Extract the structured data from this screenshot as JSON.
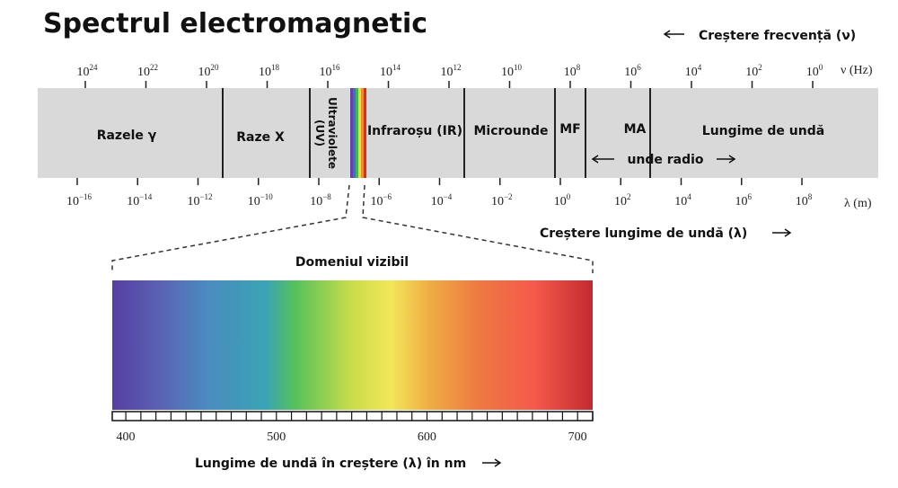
{
  "header": {
    "title": "Spectrul electromagnetic",
    "frequency_note": "Creștere frecvență (ν)"
  },
  "frequency_axis": {
    "unit": "ν (Hz)",
    "ticks": [
      {
        "base": "10",
        "exp": "24"
      },
      {
        "base": "10",
        "exp": "22"
      },
      {
        "base": "10",
        "exp": "20"
      },
      {
        "base": "10",
        "exp": "18"
      },
      {
        "base": "10",
        "exp": "16"
      },
      {
        "base": "10",
        "exp": "14"
      },
      {
        "base": "10",
        "exp": "12"
      },
      {
        "base": "10",
        "exp": "10"
      },
      {
        "base": "10",
        "exp": "8"
      },
      {
        "base": "10",
        "exp": "6"
      },
      {
        "base": "10",
        "exp": "4"
      },
      {
        "base": "10",
        "exp": "2"
      },
      {
        "base": "10",
        "exp": "0"
      }
    ]
  },
  "regions": {
    "gamma": "Razele γ",
    "xray": "Raze X",
    "uv_1": "Ultraviolete",
    "uv_2": "(UV)",
    "ir": "Infraroșu (IR)",
    "micro": "Microunde",
    "mf": "MF",
    "ma": "MA",
    "long": "Lungime de undă",
    "radio": "unde radio"
  },
  "wavelength_axis": {
    "unit": "λ (m)",
    "note": "Creștere lungime de undă (λ)",
    "ticks": [
      {
        "base": "10",
        "exp": "−16"
      },
      {
        "base": "10",
        "exp": "−14"
      },
      {
        "base": "10",
        "exp": "−12"
      },
      {
        "base": "10",
        "exp": "−10"
      },
      {
        "base": "10",
        "exp": "−8"
      },
      {
        "base": "10",
        "exp": "−6"
      },
      {
        "base": "10",
        "exp": "−4"
      },
      {
        "base": "10",
        "exp": "−2"
      },
      {
        "base": "10",
        "exp": "0"
      },
      {
        "base": "10",
        "exp": "2"
      },
      {
        "base": "10",
        "exp": "4"
      },
      {
        "base": "10",
        "exp": "6"
      },
      {
        "base": "10",
        "exp": "8"
      }
    ]
  },
  "visible": {
    "title": "Domeniul vizibil",
    "ticks": [
      "400",
      "500",
      "600",
      "700"
    ],
    "caption": "Lungime de undă în creștere (λ) în nm"
  }
}
